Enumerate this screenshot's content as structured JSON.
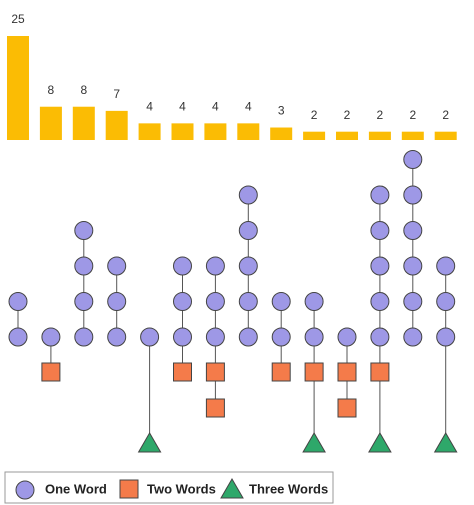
{
  "chart_data": {
    "type": "upset",
    "values": [
      25,
      8,
      8,
      7,
      4,
      4,
      4,
      4,
      3,
      2,
      2,
      2,
      2,
      2
    ],
    "color": "#fbbc04",
    "members": [
      {
        "circles": 2,
        "squares": 0,
        "triangles": 0
      },
      {
        "circles": 1,
        "squares": 1,
        "triangles": 0
      },
      {
        "circles": 4,
        "squares": 0,
        "triangles": 0
      },
      {
        "circles": 3,
        "squares": 0,
        "triangles": 0
      },
      {
        "circles": 1,
        "squares": 0,
        "triangles": 1
      },
      {
        "circles": 3,
        "squares": 1,
        "triangles": 0
      },
      {
        "circles": 3,
        "squares": 2,
        "triangles": 0
      },
      {
        "circles": 5,
        "squares": 0,
        "triangles": 0
      },
      {
        "circles": 2,
        "squares": 1,
        "triangles": 0
      },
      {
        "circles": 2,
        "squares": 1,
        "triangles": 1
      },
      {
        "circles": 1,
        "squares": 2,
        "triangles": 0
      },
      {
        "circles": 5,
        "squares": 1,
        "triangles": 1
      },
      {
        "circles": 6,
        "squares": 0,
        "triangles": 0
      },
      {
        "circles": 3,
        "squares": 0,
        "triangles": 1
      }
    ],
    "series": [
      {
        "name": "One Word",
        "color": "#9e98e6"
      },
      {
        "name": "Two Words",
        "color": "#f47b4a"
      },
      {
        "name": "Three Words",
        "color": "#2ea86a"
      }
    ]
  }
}
